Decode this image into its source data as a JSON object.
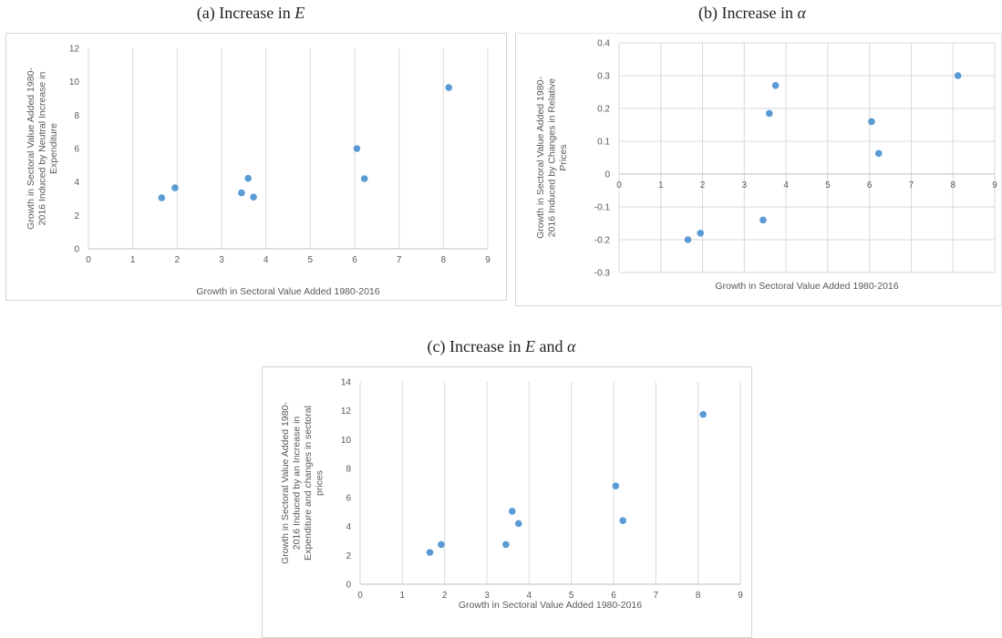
{
  "panels": [
    {
      "caption": {
        "prefix": "(a) Increase in ",
        "var1": "E",
        "mid": "",
        "var2": ""
      },
      "chart_data": {
        "type": "scatter",
        "x": [
          1.65,
          1.95,
          3.45,
          3.6,
          3.72,
          6.05,
          6.22,
          8.12
        ],
        "y": [
          3.05,
          3.65,
          3.35,
          4.22,
          3.1,
          6.0,
          4.2,
          9.65
        ],
        "xlim": [
          0,
          9
        ],
        "ylim": [
          0,
          12
        ],
        "xticks": [
          0,
          1,
          2,
          3,
          4,
          5,
          6,
          7,
          8,
          9
        ],
        "yticks": [
          0,
          2,
          4,
          6,
          8,
          10,
          12
        ],
        "xlabel": "Growth in Sectoral Value Added 1980-2016",
        "ylabel_lines": [
          "Growth in Sectoral Value Added 1980-",
          "2016 Induced by Neutral Increase in",
          "Expenditure"
        ],
        "grid": "vertical",
        "x_axis_at": "bottom",
        "marker_color": "#5b9bd5"
      }
    },
    {
      "caption": {
        "prefix": "(b) Increase in ",
        "var1": "α",
        "mid": "",
        "var2": ""
      },
      "chart_data": {
        "type": "scatter",
        "x": [
          1.65,
          1.95,
          3.45,
          3.6,
          3.75,
          6.05,
          6.22,
          8.12
        ],
        "y": [
          -0.2,
          -0.18,
          -0.14,
          0.185,
          0.27,
          0.16,
          0.063,
          0.3
        ],
        "xlim": [
          0,
          9
        ],
        "ylim": [
          -0.3,
          0.4
        ],
        "xticks": [
          0,
          1,
          2,
          3,
          4,
          5,
          6,
          7,
          8,
          9
        ],
        "yticks": [
          -0.3,
          -0.2,
          -0.1,
          0,
          0.1,
          0.2,
          0.3,
          0.4
        ],
        "xlabel": "Growth in Sectoral Value Added 1980-2016",
        "ylabel_lines": [
          "Growth in Sectoral Value Added 1980-",
          "2016 Induced by Changes in Relative",
          "Prices"
        ],
        "grid": "both",
        "x_axis_at": "zero",
        "marker_color": "#5b9bd5"
      }
    },
    {
      "caption": {
        "prefix": "(c) Increase in ",
        "var1": "E",
        "mid": " and ",
        "var2": "α"
      },
      "chart_data": {
        "type": "scatter",
        "x": [
          1.65,
          1.92,
          3.45,
          3.6,
          3.75,
          6.05,
          6.22,
          8.12
        ],
        "y": [
          2.2,
          2.75,
          2.75,
          5.05,
          4.2,
          6.8,
          4.4,
          11.75
        ],
        "xlim": [
          0,
          9
        ],
        "ylim": [
          0,
          14
        ],
        "xticks": [
          0,
          1,
          2,
          3,
          4,
          5,
          6,
          7,
          8,
          9
        ],
        "yticks": [
          0,
          2,
          4,
          6,
          8,
          10,
          12,
          14
        ],
        "xlabel": "Growth in Sectoral Value Added 1980-2016",
        "ylabel_lines": [
          "Growth in Sectoral Value Added 1980-",
          "2016 Induced by an Increase in",
          "Expenditure and changes in sectoral",
          "prices"
        ],
        "grid": "vertical",
        "x_axis_at": "bottom",
        "marker_color": "#5b9bd5"
      }
    }
  ]
}
